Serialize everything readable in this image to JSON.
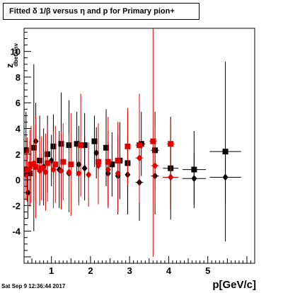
{
  "title": "Fitted δ 1/β versus η and p for Primary pion+",
  "footer_text": "Sat Sep  9 12:36:44 2017",
  "axis": {
    "ylabel_main": "z",
    "ylabel_sub": "dbetainv",
    "xlabel": "p[GeV/c]"
  },
  "chart_data": {
    "type": "scatter",
    "xlim": [
      0.3,
      6.2
    ],
    "ylim": [
      -6.5,
      11.8
    ],
    "x_ticks": [
      1,
      2,
      3,
      4,
      5
    ],
    "y_ticks": [
      -4,
      -2,
      0,
      2,
      4,
      6,
      8,
      10
    ],
    "grid": false,
    "colors": {
      "black": "#000000",
      "red": "#e00000"
    },
    "series": [
      {
        "marker": "square",
        "color": "#000000",
        "points": [
          {
            "x": 0.35,
            "y": 2.3,
            "ex": 0.03,
            "ey": 3.0
          },
          {
            "x": 0.45,
            "y": 0.5,
            "ex": 0.03,
            "ey": 2.5
          },
          {
            "x": 0.55,
            "y": 2.5,
            "ex": 0.03,
            "ey": 6.5
          },
          {
            "x": 0.7,
            "y": 1.5,
            "ex": 0.03,
            "ey": 3.5
          },
          {
            "x": 0.9,
            "y": 2.0,
            "ex": 0.03,
            "ey": 3.0
          },
          {
            "x": 1.05,
            "y": 2.6,
            "ex": 0.04,
            "ey": 2.5
          },
          {
            "x": 1.25,
            "y": 2.8,
            "ex": 0.04,
            "ey": 4.0
          },
          {
            "x": 1.45,
            "y": 2.7,
            "ex": 0.05,
            "ey": 3.5
          },
          {
            "x": 1.65,
            "y": 2.8,
            "ex": 0.05,
            "ey": 2.5
          },
          {
            "x": 1.85,
            "y": 2.7,
            "ex": 0.05,
            "ey": 2.5
          },
          {
            "x": 2.1,
            "y": 3.0,
            "ex": 0.05,
            "ey": 2.0
          },
          {
            "x": 2.4,
            "y": 2.5,
            "ex": 0.05,
            "ey": 3.0
          },
          {
            "x": 2.55,
            "y": 1.2,
            "ex": 0.05,
            "ey": 2.5
          },
          {
            "x": 2.75,
            "y": 1.5,
            "ex": 0.05,
            "ey": 3.0
          },
          {
            "x": 2.95,
            "y": 1.3,
            "ex": 0.05,
            "ey": 4.0
          },
          {
            "x": 3.3,
            "y": 2.8,
            "ex": 0.1,
            "ey": 2.5
          },
          {
            "x": 3.65,
            "y": 2.3,
            "ex": 0.1,
            "ey": 3.0
          },
          {
            "x": 4.05,
            "y": 0.9,
            "ex": 0.2,
            "ey": 4.0
          },
          {
            "x": 4.65,
            "y": 0.8,
            "ex": 0.3,
            "ey": 3.0
          },
          {
            "x": 5.45,
            "y": 2.2,
            "ex": 0.4,
            "ey": 7.0
          }
        ]
      },
      {
        "marker": "diamond",
        "color": "#000000",
        "points": [
          {
            "x": 0.4,
            "y": -1.0,
            "ex": 0.03,
            "ey": 2.0
          },
          {
            "x": 0.6,
            "y": 3.0,
            "ex": 0.03,
            "ey": 3.0
          },
          {
            "x": 0.8,
            "y": 1.0,
            "ex": 0.03,
            "ey": 3.0
          },
          {
            "x": 1.0,
            "y": 1.5,
            "ex": 0.04,
            "ey": 2.0
          },
          {
            "x": 1.2,
            "y": 0.8,
            "ex": 0.04,
            "ey": 3.0
          },
          {
            "x": 1.45,
            "y": 0.5,
            "ex": 0.05,
            "ey": 3.0
          },
          {
            "x": 1.7,
            "y": 1.2,
            "ex": 0.05,
            "ey": 3.0
          },
          {
            "x": 1.85,
            "y": 0.9,
            "ex": 0.05,
            "ey": 2.5
          },
          {
            "x": 2.15,
            "y": 2.1,
            "ex": 0.05,
            "ey": 2.0
          },
          {
            "x": 2.45,
            "y": 0.5,
            "ex": 0.05,
            "ey": 2.5
          },
          {
            "x": 2.7,
            "y": 0.3,
            "ex": 0.05,
            "ey": 3.0
          },
          {
            "x": 2.95,
            "y": 0.4,
            "ex": 0.05,
            "ey": 3.0
          },
          {
            "x": 3.25,
            "y": -0.2,
            "ex": 0.1,
            "ey": 3.0
          },
          {
            "x": 3.65,
            "y": 0.3,
            "ex": 0.1,
            "ey": 3.0
          },
          {
            "x": 4.05,
            "y": 0.2,
            "ex": 0.2,
            "ey": 2.5
          },
          {
            "x": 4.65,
            "y": 0.1,
            "ex": 0.3,
            "ey": 2.0
          },
          {
            "x": 5.45,
            "y": 0.2,
            "ex": 0.4,
            "ey": 2.0
          }
        ]
      },
      {
        "marker": "square",
        "color": "#e00000",
        "points": [
          {
            "x": 0.38,
            "y": 0.8,
            "ex": 0.03,
            "ey": 2.5
          },
          {
            "x": 0.48,
            "y": 1.2,
            "ex": 0.03,
            "ey": 3.0
          },
          {
            "x": 0.6,
            "y": 1.0,
            "ex": 0.03,
            "ey": 4.0
          },
          {
            "x": 0.75,
            "y": 0.9,
            "ex": 0.03,
            "ey": 2.5
          },
          {
            "x": 0.9,
            "y": 1.3,
            "ex": 0.03,
            "ey": 3.0
          },
          {
            "x": 1.1,
            "y": 1.2,
            "ex": 0.04,
            "ey": 3.0
          },
          {
            "x": 1.3,
            "y": 1.4,
            "ex": 0.04,
            "ey": 3.0
          },
          {
            "x": 1.5,
            "y": 1.2,
            "ex": 0.05,
            "ey": 4.0
          },
          {
            "x": 1.75,
            "y": 2.7,
            "ex": 0.05,
            "ey": 4.0
          },
          {
            "x": 2.2,
            "y": 1.4,
            "ex": 0.05,
            "ey": 3.0
          },
          {
            "x": 2.45,
            "y": 1.4,
            "ex": 0.05,
            "ey": 3.5
          },
          {
            "x": 2.7,
            "y": 1.5,
            "ex": 0.05,
            "ey": 3.0
          },
          {
            "x": 2.95,
            "y": 2.6,
            "ex": 0.05,
            "ey": 3.0
          },
          {
            "x": 3.25,
            "y": 2.7,
            "ex": 0.1,
            "ey": 4.0
          },
          {
            "x": 3.6,
            "y": 3.0,
            "ex": 0.1,
            "ey": 9.0
          },
          {
            "x": 4.05,
            "y": 2.8,
            "ex": 0.1,
            "ey": 2.0
          }
        ]
      },
      {
        "marker": "diamond",
        "color": "#e00000",
        "points": [
          {
            "x": 0.35,
            "y": 0.4,
            "ex": 0.03,
            "ey": 2.0
          },
          {
            "x": 0.45,
            "y": 0.9,
            "ex": 0.03,
            "ey": 3.0
          },
          {
            "x": 0.55,
            "y": 1.3,
            "ex": 0.03,
            "ey": 3.0
          },
          {
            "x": 0.7,
            "y": 0.7,
            "ex": 0.03,
            "ey": 2.5
          },
          {
            "x": 0.85,
            "y": 0.6,
            "ex": 0.03,
            "ey": 3.0
          },
          {
            "x": 1.05,
            "y": 0.8,
            "ex": 0.04,
            "ey": 3.0
          },
          {
            "x": 1.25,
            "y": 0.7,
            "ex": 0.04,
            "ey": 3.0
          },
          {
            "x": 1.45,
            "y": 0.6,
            "ex": 0.05,
            "ey": 3.0
          },
          {
            "x": 1.7,
            "y": 0.5,
            "ex": 0.05,
            "ey": 2.5
          },
          {
            "x": 1.95,
            "y": 0.4,
            "ex": 0.05,
            "ey": 2.5
          },
          {
            "x": 2.2,
            "y": 1.1,
            "ex": 0.05,
            "ey": 3.0
          },
          {
            "x": 2.45,
            "y": 0.8,
            "ex": 0.05,
            "ey": 3.0
          },
          {
            "x": 2.7,
            "y": 0.5,
            "ex": 0.05,
            "ey": 3.0
          },
          {
            "x": 3.25,
            "y": 1.7,
            "ex": 0.1,
            "ey": 3.5
          },
          {
            "x": 3.65,
            "y": 1.1,
            "ex": 0.1,
            "ey": 3.0
          },
          {
            "x": 4.05,
            "y": 0.2,
            "ex": 0.2,
            "ey": 2.5
          }
        ]
      }
    ]
  }
}
